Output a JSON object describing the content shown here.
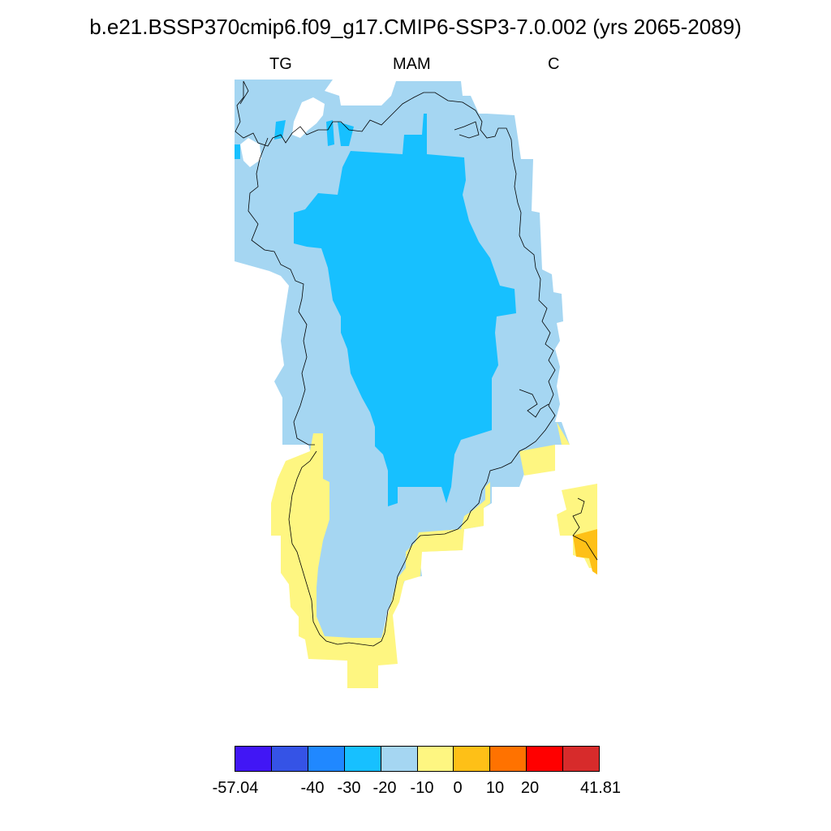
{
  "title": "b.e21.BSSP370cmip6.f09_g17.CMIP6-SSP3-7.0.002 (yrs 2065-2089)",
  "subtitle": {
    "left": "TG",
    "center": "MAM",
    "right": "C"
  },
  "colorbar": {
    "colors": [
      "#4116f5",
      "#3553e6",
      "#2088ff",
      "#17c0ff",
      "#a5d6f2",
      "#fef681",
      "#fec017",
      "#ff7200",
      "#ff0000",
      "#d72b2b"
    ],
    "labels": [
      "-57.04",
      "-40",
      "-30",
      "-20",
      "-10",
      "0",
      "10",
      "20",
      "41.81"
    ]
  },
  "map_fill_colors": {
    "interior": "#17c0ff",
    "margin": "#a5d6f2",
    "coast": "#fef681",
    "warm": "#fec017",
    "coastline": "#000000"
  }
}
